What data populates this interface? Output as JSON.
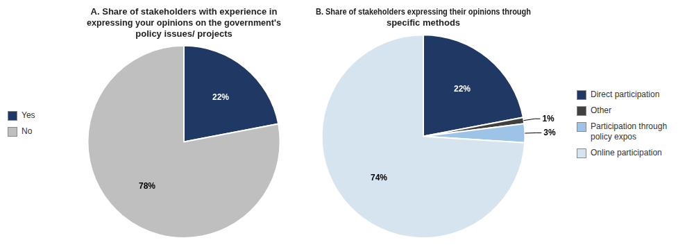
{
  "chart_data": [
    {
      "type": "pie",
      "title": "A. Share of stakeholders with experience in\nexpressing your opinions on the government's\npolicy issues/ projects",
      "categories": [
        "Yes",
        "No"
      ],
      "values": [
        22,
        78
      ],
      "value_labels": [
        "22%",
        "78%"
      ],
      "colors": [
        "#1F3864",
        "#BFBFBF"
      ],
      "data_labels": true,
      "legend": "left"
    },
    {
      "type": "pie",
      "title": "B. Share of stakeholders expressing their opinions through\nspecific methods",
      "categories": [
        "Direct participation",
        "Other",
        "Participation through\npolicy expos",
        "Online participation"
      ],
      "values": [
        22,
        1,
        3,
        74
      ],
      "value_labels": [
        "22%",
        "1%",
        "3%",
        "74%"
      ],
      "colors": [
        "#1F3864",
        "#404040",
        "#9DC3E6",
        "#D6E4F0"
      ],
      "data_labels": true,
      "legend": "right"
    }
  ]
}
